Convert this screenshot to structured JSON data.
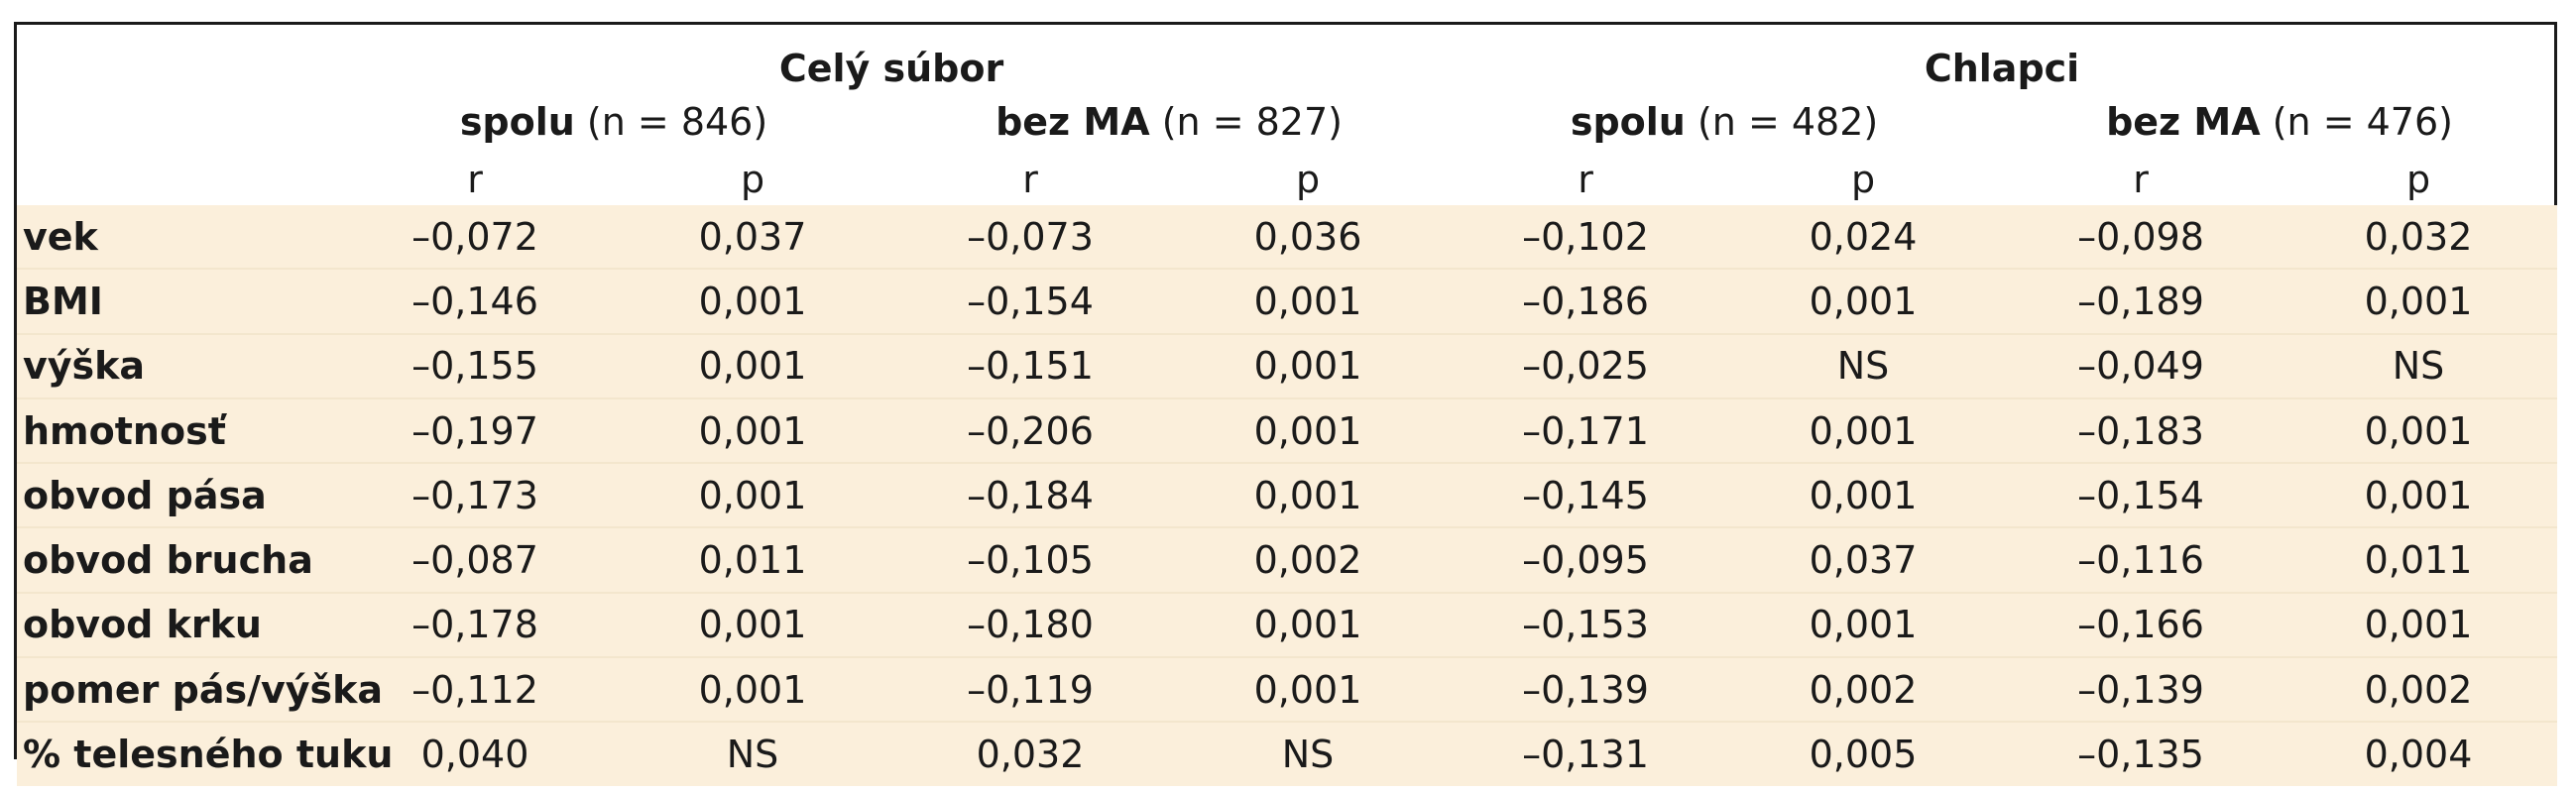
{
  "groups": [
    "Celý súbor",
    "Chlapci"
  ],
  "subgroups": [
    {
      "name": "spolu",
      "n": "(n = 846)"
    },
    {
      "name": "bez MA",
      "n": "(n = 827)"
    },
    {
      "name": "spolu",
      "n": "(n = 482)"
    },
    {
      "name": "bez MA",
      "n": "(n = 476)"
    }
  ],
  "stat_headers": [
    "r",
    "p",
    "r",
    "p",
    "r",
    "p",
    "r",
    "p"
  ],
  "rows": [
    {
      "label": "vek",
      "values": [
        "–0,072",
        "0,037",
        "–0,073",
        "0,036",
        "–0,102",
        "0,024",
        "–0,098",
        "0,032"
      ]
    },
    {
      "label": "BMI",
      "values": [
        "–0,146",
        "0,001",
        "–0,154",
        "0,001",
        "–0,186",
        "0,001",
        "–0,189",
        "0,001"
      ]
    },
    {
      "label": "výška",
      "values": [
        "–0,155",
        "0,001",
        "–0,151",
        "0,001",
        "–0,025",
        "NS",
        "–0,049",
        "NS"
      ]
    },
    {
      "label": "hmotnosť",
      "values": [
        "–0,197",
        "0,001",
        "–0,206",
        "0,001",
        "–0,171",
        "0,001",
        "–0,183",
        "0,001"
      ]
    },
    {
      "label": "obvod pása",
      "values": [
        "–0,173",
        "0,001",
        "–0,184",
        "0,001",
        "–0,145",
        "0,001",
        "–0,154",
        "0,001"
      ]
    },
    {
      "label": "obvod brucha",
      "values": [
        "–0,087",
        "0,011",
        "–0,105",
        "0,002",
        "–0,095",
        "0,037",
        "–0,116",
        "0,011"
      ]
    },
    {
      "label": "obvod krku",
      "values": [
        "–0,178",
        "0,001",
        "–0,180",
        "0,001",
        "–0,153",
        "0,001",
        "–0,166",
        "0,001"
      ]
    },
    {
      "label": "pomer pás/výška",
      "values": [
        "–0,112",
        "0,001",
        "–0,119",
        "0,001",
        "–0,139",
        "0,002",
        "–0,139",
        "0,002"
      ]
    },
    {
      "label": "% telesného tuku",
      "values": [
        "0,040",
        "NS",
        "0,032",
        "NS",
        "–0,131",
        "0,005",
        "–0,135",
        "0,004"
      ]
    }
  ],
  "colors": {
    "shade": "#fbefdb",
    "border": "#1a1a1a"
  }
}
